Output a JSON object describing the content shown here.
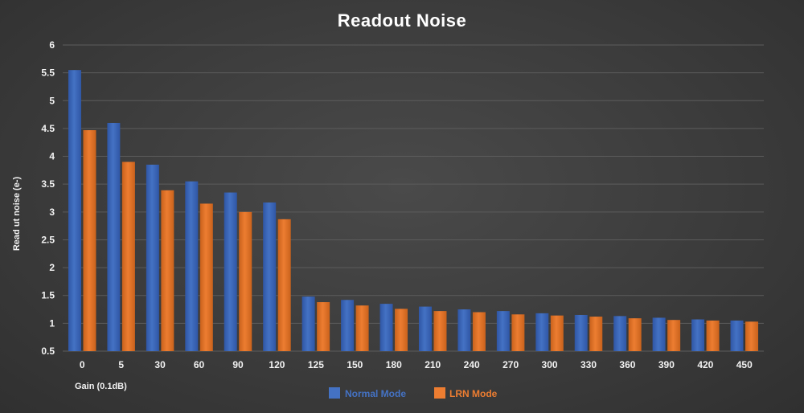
{
  "chart_data": {
    "type": "bar",
    "title": "Readout Noise",
    "xlabel": "Gain (0.1dB)",
    "ylabel": "Read ut noise (e-)",
    "ylim": [
      0.5,
      6
    ],
    "yticks": [
      "0.5",
      "1",
      "1.5",
      "2",
      "2.5",
      "3",
      "3.5",
      "4",
      "4.5",
      "5",
      "5.5",
      "6"
    ],
    "grid": true,
    "legend_position": "bottom",
    "categories": [
      "0",
      "5",
      "30",
      "60",
      "90",
      "120",
      "125",
      "150",
      "180",
      "210",
      "240",
      "270",
      "300",
      "330",
      "360",
      "390",
      "420",
      "450"
    ],
    "series": [
      {
        "name": "Normal Mode",
        "color": "#4472c4",
        "values": [
          5.55,
          4.6,
          3.85,
          3.55,
          3.35,
          3.17,
          1.48,
          1.42,
          1.35,
          1.3,
          1.25,
          1.22,
          1.18,
          1.15,
          1.13,
          1.1,
          1.07,
          1.05
        ]
      },
      {
        "name": "LRN Mode",
        "color": "#ed7d31",
        "values": [
          4.47,
          3.9,
          3.39,
          3.15,
          3.0,
          2.87,
          1.38,
          1.32,
          1.26,
          1.22,
          1.2,
          1.16,
          1.14,
          1.12,
          1.09,
          1.06,
          1.05,
          1.03
        ]
      }
    ]
  }
}
